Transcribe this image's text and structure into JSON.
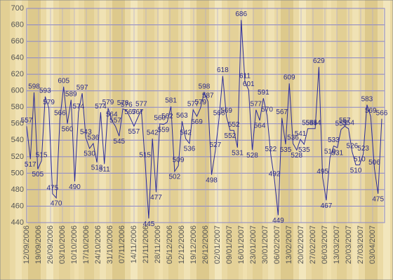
{
  "chart_data": {
    "type": "line",
    "x_labels": [
      "12/09/2006",
      "19/09/2006",
      "26/09/2006",
      "03/10/2006",
      "10/10/2006",
      "17/10/2006",
      "24/10/2006",
      "31/10/2006",
      "07/11/2006",
      "14/11/2006",
      "21/11/2006",
      "28/11/2006",
      "05/12/2006",
      "12/12/2006",
      "19/12/2006",
      "26/12/2006",
      "02/01/2007",
      "09/01/2007",
      "16/01/2007",
      "23/01/2007",
      "30/01/2007",
      "06/02/2007",
      "13/02/2007",
      "20/02/2007",
      "27/02/2007",
      "06/03/2007",
      "13/03/2007",
      "20/03/2007",
      "27/03/2007",
      "03/04/2007"
    ],
    "values": [
      557,
      517,
      598,
      505,
      515,
      593,
      579,
      475,
      470,
      566,
      605,
      560,
      589,
      490,
      574,
      597,
      543,
      530,
      536,
      513,
      574,
      511,
      579,
      564,
      557,
      545,
      578,
      576,
      567,
      557,
      567,
      577,
      515,
      445,
      542,
      477,
      560,
      559,
      562,
      581,
      502,
      509,
      563,
      542,
      536,
      577,
      569,
      579,
      598,
      587,
      498,
      527,
      566,
      618,
      569,
      552,
      552,
      531,
      686,
      611,
      601,
      528,
      577,
      564,
      591,
      570,
      522,
      492,
      449,
      567,
      535,
      609,
      536,
      528,
      541,
      535,
      554,
      554,
      554,
      629,
      495,
      467,
      519,
      533,
      531,
      553,
      557,
      554,
      526,
      510,
      510,
      523,
      583,
      569,
      506,
      475,
      566
    ],
    "color": "#2b2b9a",
    "ylim": [
      440,
      700
    ],
    "yticks": [
      440,
      460,
      480,
      500,
      520,
      540,
      560,
      580,
      600,
      620,
      640,
      660,
      680,
      700
    ],
    "grid": true
  }
}
